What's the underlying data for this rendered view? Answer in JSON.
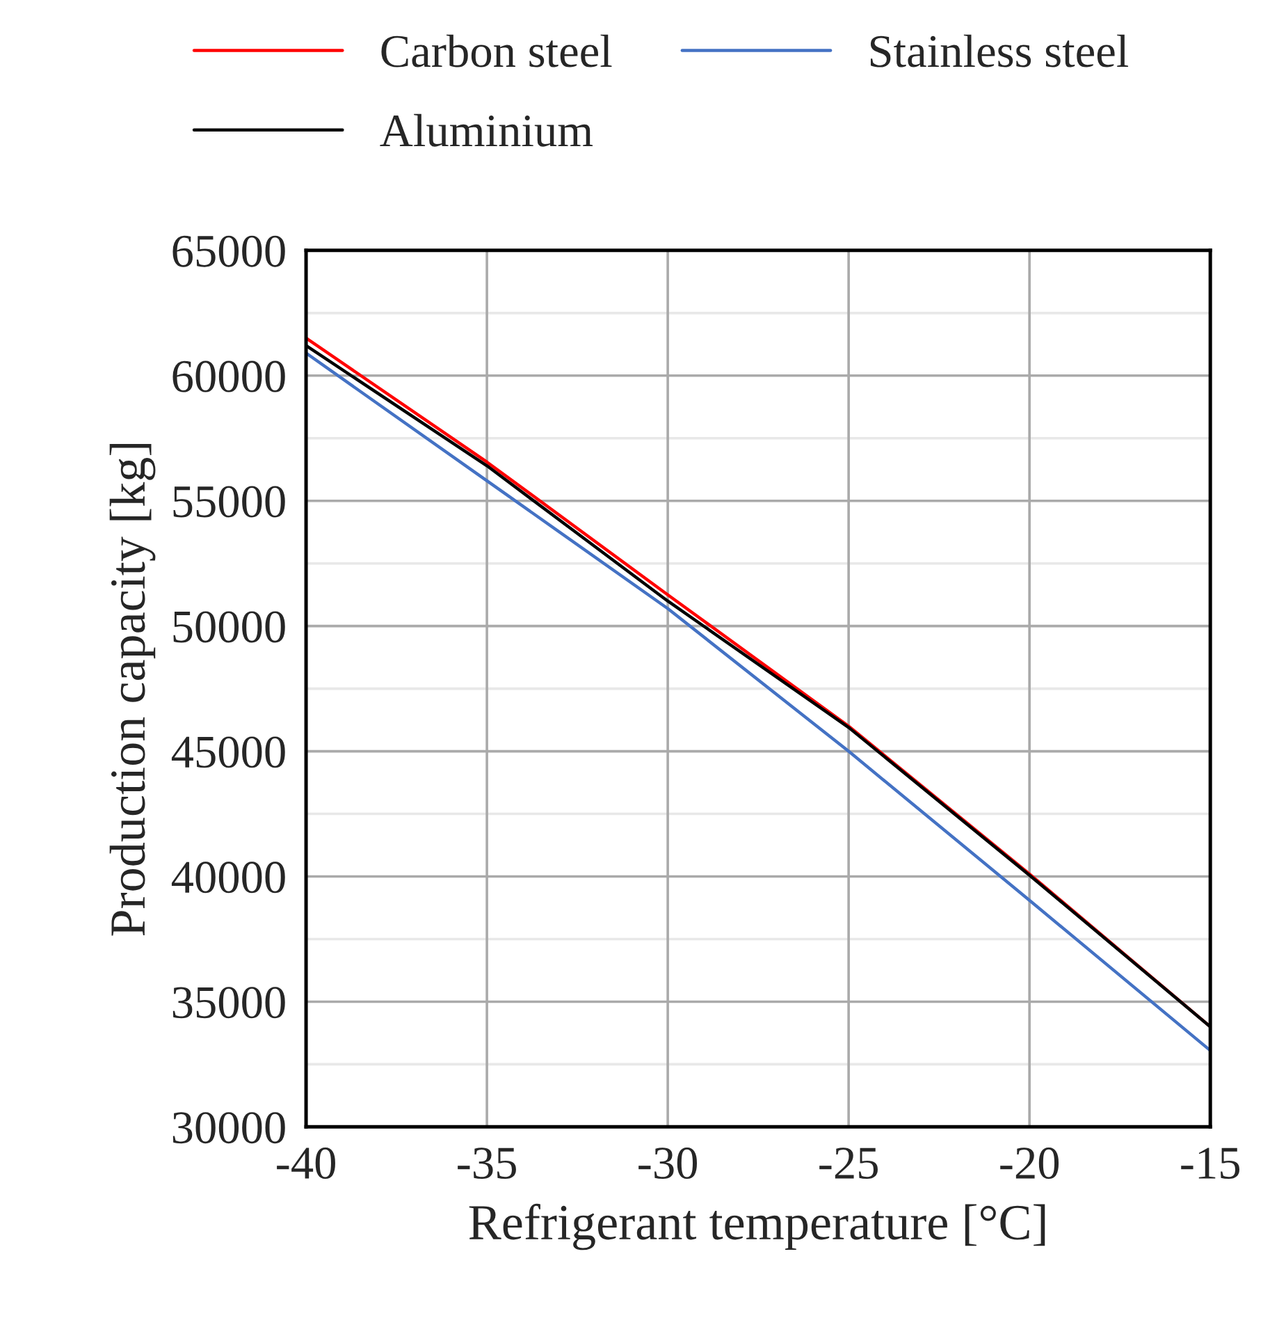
{
  "chart_data": {
    "type": "line",
    "xlabel": "Refrigerant temperature [°C]",
    "ylabel": "Production capacity [kg]",
    "x": [
      -40,
      -35,
      -30,
      -25,
      -20,
      -15
    ],
    "series": [
      {
        "name": "Carbon steel",
        "color": "#ff0000",
        "values": [
          61500,
          56550,
          51250,
          46000,
          40100,
          34000
        ]
      },
      {
        "name": "Stainless steel",
        "color": "#4472c4",
        "values": [
          60900,
          55800,
          50700,
          45000,
          39050,
          33050
        ]
      },
      {
        "name": "Aluminium",
        "color": "#000000",
        "values": [
          61200,
          56400,
          51000,
          45950,
          40050,
          34000
        ]
      }
    ],
    "xlim": [
      -40,
      -15
    ],
    "xticks": [
      -40,
      -35,
      -30,
      -25,
      -20,
      -15
    ],
    "ylim": [
      30000,
      65000
    ],
    "yticks": [
      30000,
      35000,
      40000,
      45000,
      50000,
      55000,
      60000,
      65000
    ],
    "grid": true,
    "legend": "top",
    "marker": "none",
    "line_style": "solid"
  }
}
